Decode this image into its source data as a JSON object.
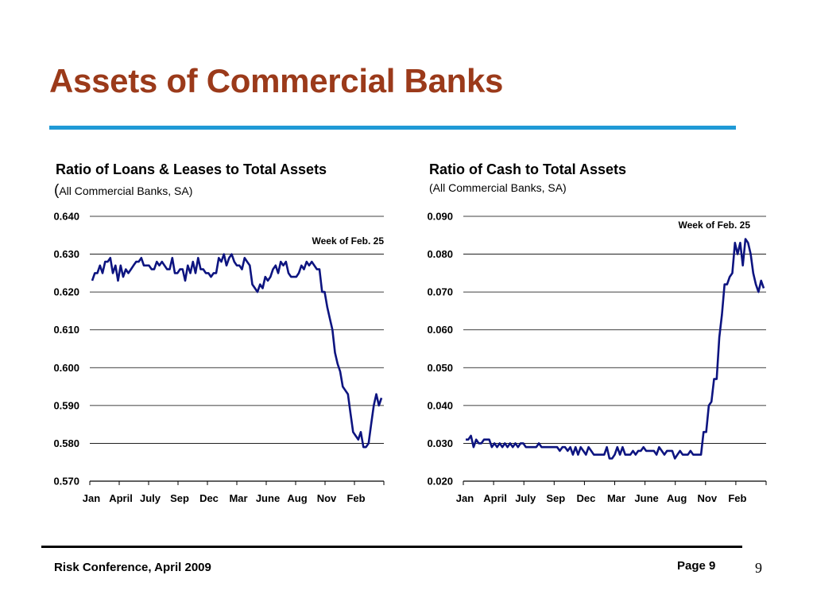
{
  "slide": {
    "title": "Assets of Commercial Banks",
    "title_color": "#9b3a1a",
    "rule_color": "#1f9ad6"
  },
  "footer": {
    "left_text": "Risk Conference, April 2009",
    "page_label": "Page 9",
    "slide_number": "9"
  },
  "chart_data": [
    {
      "type": "line",
      "title": "Ratio of Loans & Leases to Total Assets",
      "subtitle_paren_open": "(",
      "subtitle": "All Commercial Banks, SA)",
      "annotation": "Week of Feb. 25",
      "xlabel": "",
      "ylabel": "",
      "line_color": "#0d1480",
      "ylim": [
        0.57,
        0.64
      ],
      "y_ticks": [
        "0.570",
        "0.580",
        "0.590",
        "0.600",
        "0.610",
        "0.620",
        "0.630",
        "0.640"
      ],
      "x_tick_labels": [
        "Jan",
        "April",
        "July",
        "Sep",
        "Dec",
        "Mar",
        "June",
        "Aug",
        "Nov",
        "Feb"
      ],
      "grid": true,
      "series": [
        {
          "values": [
            0.623,
            0.625,
            0.625,
            0.627,
            0.625,
            0.628,
            0.628,
            0.629,
            0.625,
            0.627,
            0.623,
            0.627,
            0.624,
            0.626,
            0.625,
            0.626,
            0.627,
            0.628,
            0.628,
            0.629,
            0.627,
            0.627,
            0.627,
            0.626,
            0.626,
            0.628,
            0.627,
            0.628,
            0.627,
            0.626,
            0.626,
            0.629,
            0.625,
            0.625,
            0.626,
            0.626,
            0.623,
            0.627,
            0.625,
            0.628,
            0.625,
            0.629,
            0.626,
            0.626,
            0.625,
            0.625,
            0.624,
            0.625,
            0.625,
            0.629,
            0.628,
            0.63,
            0.627,
            0.629,
            0.63,
            0.628,
            0.627,
            0.627,
            0.626,
            0.629,
            0.628,
            0.627,
            0.622,
            0.621,
            0.62,
            0.622,
            0.621,
            0.624,
            0.623,
            0.624,
            0.626,
            0.627,
            0.625,
            0.628,
            0.627,
            0.628,
            0.625,
            0.624,
            0.624,
            0.624,
            0.625,
            0.627,
            0.626,
            0.628,
            0.627,
            0.628,
            0.627,
            0.626,
            0.626,
            0.62,
            0.62,
            0.616,
            0.613,
            0.61,
            0.604,
            0.601,
            0.599,
            0.595,
            0.594,
            0.593,
            0.588,
            0.583,
            0.582,
            0.581,
            0.583,
            0.579,
            0.579,
            0.58,
            0.585,
            0.59,
            0.593,
            0.59,
            0.592
          ]
        }
      ]
    },
    {
      "type": "line",
      "title": "Ratio of Cash to Total Assets",
      "subtitle": "(All Commercial Banks, SA)",
      "annotation": "Week of Feb. 25",
      "xlabel": "",
      "ylabel": "",
      "line_color": "#0d1480",
      "ylim": [
        0.02,
        0.09
      ],
      "y_ticks": [
        "0.020",
        "0.030",
        "0.040",
        "0.050",
        "0.060",
        "0.070",
        "0.080",
        "0.090"
      ],
      "x_tick_labels": [
        "Jan",
        "April",
        "July",
        "Sep",
        "Dec",
        "Mar",
        "June",
        "Aug",
        "Nov",
        "Feb"
      ],
      "grid": true,
      "series": [
        {
          "values": [
            0.031,
            0.031,
            0.032,
            0.029,
            0.031,
            0.03,
            0.03,
            0.031,
            0.031,
            0.031,
            0.029,
            0.03,
            0.029,
            0.03,
            0.029,
            0.03,
            0.029,
            0.03,
            0.029,
            0.03,
            0.029,
            0.03,
            0.03,
            0.029,
            0.029,
            0.029,
            0.029,
            0.029,
            0.03,
            0.029,
            0.029,
            0.029,
            0.029,
            0.029,
            0.029,
            0.029,
            0.028,
            0.029,
            0.029,
            0.028,
            0.029,
            0.027,
            0.029,
            0.027,
            0.029,
            0.028,
            0.027,
            0.029,
            0.028,
            0.027,
            0.027,
            0.027,
            0.027,
            0.027,
            0.029,
            0.026,
            0.026,
            0.027,
            0.029,
            0.027,
            0.029,
            0.027,
            0.027,
            0.027,
            0.028,
            0.027,
            0.028,
            0.028,
            0.029,
            0.028,
            0.028,
            0.028,
            0.028,
            0.027,
            0.029,
            0.028,
            0.027,
            0.028,
            0.028,
            0.028,
            0.026,
            0.027,
            0.028,
            0.027,
            0.027,
            0.027,
            0.028,
            0.027,
            0.027,
            0.027,
            0.027,
            0.033,
            0.033,
            0.04,
            0.041,
            0.047,
            0.047,
            0.058,
            0.064,
            0.072,
            0.072,
            0.074,
            0.075,
            0.083,
            0.08,
            0.083,
            0.077,
            0.084,
            0.083,
            0.08,
            0.075,
            0.072,
            0.07,
            0.073,
            0.071
          ]
        }
      ]
    }
  ]
}
